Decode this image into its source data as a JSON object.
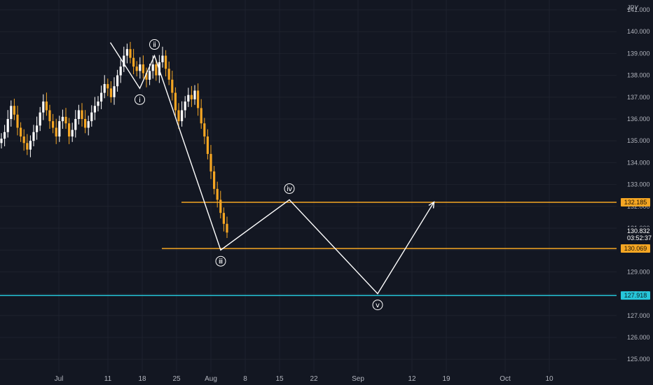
{
  "currency": "JPY",
  "colors": {
    "background": "#131722",
    "grid": "#1e222d",
    "candle_up": "#ffffff",
    "candle_down": "#f5a623",
    "resistance": "#f5a623",
    "support": "#26c6da",
    "wave": "#ffffff"
  },
  "chart_data": {
    "type": "candlestick",
    "y_ticks": [
      "141.000",
      "140.000",
      "139.000",
      "138.000",
      "137.000",
      "136.000",
      "135.000",
      "134.000",
      "133.000",
      "132.000",
      "131.000",
      "130.000",
      "129.000",
      "128.000",
      "127.000",
      "126.000",
      "125.000"
    ],
    "ylim": [
      125.0,
      141.4
    ],
    "x_ticks": [
      {
        "label": "Jul",
        "day": 12
      },
      {
        "label": "11",
        "day": 22
      },
      {
        "label": "18",
        "day": 29
      },
      {
        "label": "25",
        "day": 36
      },
      {
        "label": "Aug",
        "day": 43
      },
      {
        "label": "8",
        "day": 50
      },
      {
        "label": "15",
        "day": 57
      },
      {
        "label": "22",
        "day": 64
      },
      {
        "label": "Sep",
        "day": 73
      },
      {
        "label": "12",
        "day": 84
      },
      {
        "label": "19",
        "day": 91
      },
      {
        "label": "Oct",
        "day": 103
      },
      {
        "label": "10",
        "day": 112
      }
    ],
    "candles_close": [
      135.1,
      135.4,
      136.0,
      136.6,
      136.2,
      135.6,
      135.2,
      134.9,
      134.6,
      135.0,
      135.4,
      135.7,
      136.3,
      136.8,
      136.4,
      135.9,
      135.6,
      135.2,
      135.9,
      136.1,
      135.8,
      135.2,
      135.5,
      136.0,
      136.4,
      136.0,
      135.6,
      135.9,
      136.3,
      136.6,
      136.8,
      137.2,
      137.6,
      137.4,
      137.0,
      137.5,
      138.0,
      138.4,
      138.9,
      139.2,
      138.8,
      138.4,
      138.2,
      138.5,
      138.1,
      137.8,
      138.2,
      138.5,
      138.0,
      138.6,
      138.9,
      138.3,
      137.8,
      137.2,
      136.4,
      135.9,
      136.4,
      136.8,
      137.1,
      136.9,
      137.3,
      136.5,
      135.8,
      135.2,
      134.4,
      133.6,
      132.8,
      132.3,
      131.7,
      131.2,
      130.8
    ],
    "waves": [
      {
        "label": "ⅰ",
        "day": 28.5,
        "price": 137.4
      },
      {
        "label": "ⅱ",
        "day": 31.5,
        "price": 138.9
      },
      {
        "label": "ⅲ",
        "day": 45,
        "price": 130.0
      },
      {
        "label": "ⅳ",
        "day": 59,
        "price": 132.3
      },
      {
        "label": "ⅴ",
        "day": 77,
        "price": 128.0
      }
    ],
    "wave_path": [
      {
        "day": 22.5,
        "price": 139.5
      },
      {
        "day": 28.5,
        "price": 137.4
      },
      {
        "day": 31.5,
        "price": 138.9
      },
      {
        "day": 45,
        "price": 130.0
      },
      {
        "day": 59,
        "price": 132.3
      },
      {
        "day": 77,
        "price": 128.0
      },
      {
        "day": 88.5,
        "price": 132.2
      }
    ],
    "levels": [
      {
        "label": "132.185",
        "price": 132.185,
        "color": "#f5a623",
        "start_day": 37
      },
      {
        "label": "130.069",
        "price": 130.069,
        "color": "#f5a623",
        "start_day": 33
      },
      {
        "label": "127.918",
        "price": 127.918,
        "color": "#26c6da",
        "start_day": 0
      }
    ],
    "last_price": {
      "label": "130.832",
      "price": 130.832
    },
    "countdown": "03:52:37"
  }
}
